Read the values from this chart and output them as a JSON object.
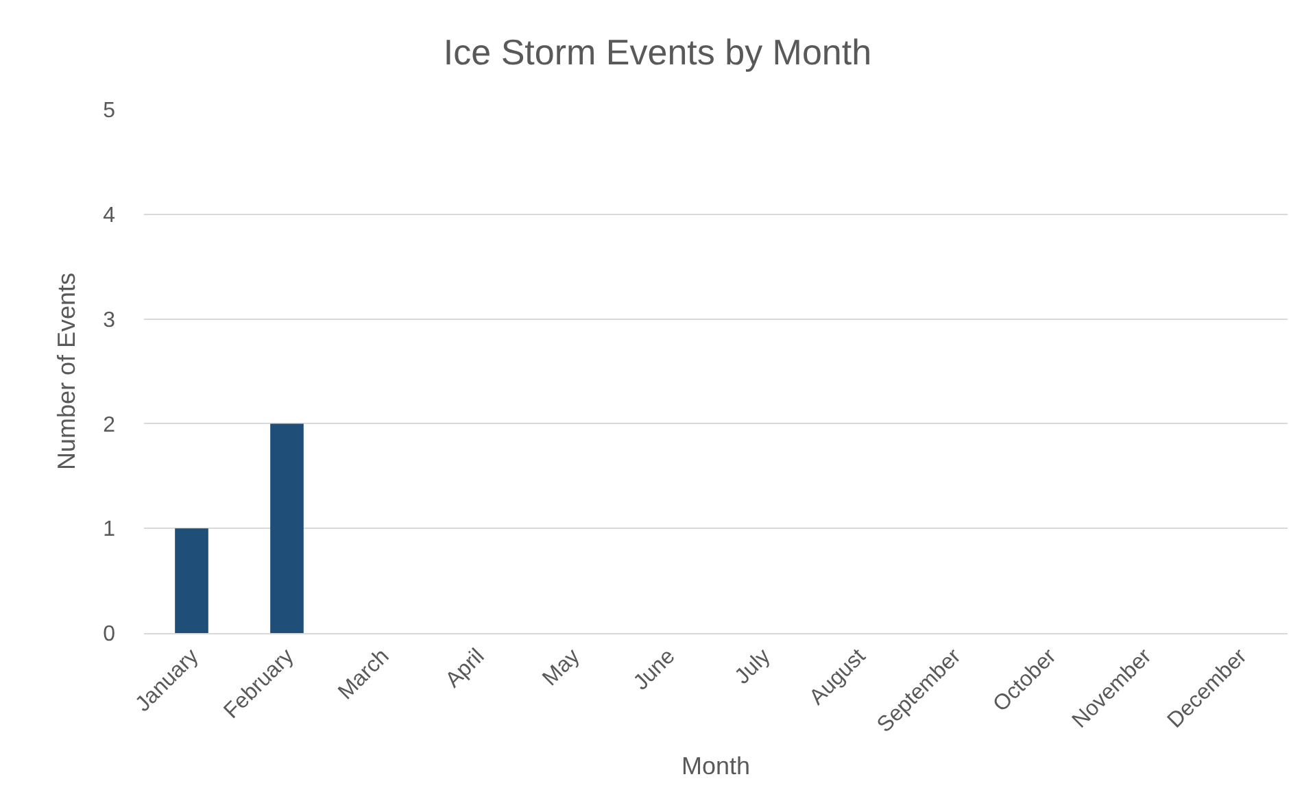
{
  "chart_data": {
    "type": "bar",
    "title": "Ice Storm Events by Month",
    "xlabel": "Month",
    "ylabel": "Number of Events",
    "categories": [
      "January",
      "February",
      "March",
      "April",
      "May",
      "June",
      "July",
      "August",
      "September",
      "October",
      "November",
      "December"
    ],
    "values": [
      1,
      2,
      0,
      0,
      0,
      0,
      0,
      0,
      0,
      0,
      0,
      0
    ],
    "color": "#1f4e79",
    "ylim": [
      0,
      5
    ],
    "yticks": [
      0,
      1,
      2,
      3,
      4,
      5
    ],
    "grid": "y"
  }
}
